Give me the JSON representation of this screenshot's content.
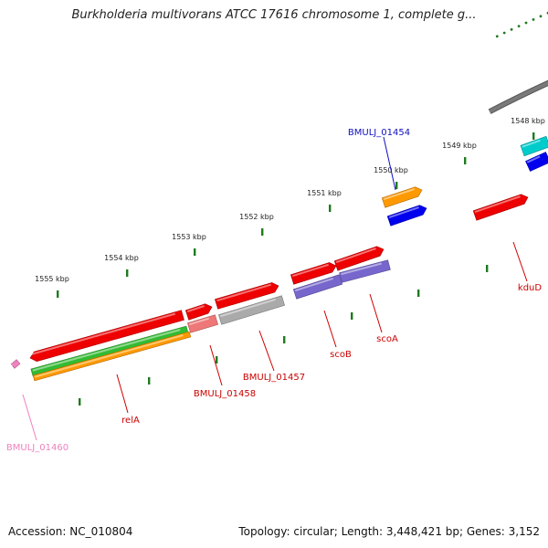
{
  "title": "Burkholderia multivorans ATCC 17616 chromosome 1, complete g...",
  "footer": {
    "accession": "Accession: NC_010804",
    "summary": "Topology: circular; Length: 3,448,421 bp; Genes: 3,152"
  },
  "ticks": [
    {
      "label": "1548 kbp"
    },
    {
      "label": "1549 kbp"
    },
    {
      "label": "1550 kbp"
    },
    {
      "label": "1551 kbp"
    },
    {
      "label": "1552 kbp"
    },
    {
      "label": "1553 kbp"
    },
    {
      "label": "1554 kbp"
    },
    {
      "label": "1555 kbp"
    }
  ],
  "gene_labels": [
    {
      "name": "BMULJ_01454",
      "color": "#1010c0"
    },
    {
      "name": "kduD",
      "color": "#cc0000"
    },
    {
      "name": "scoA",
      "color": "#cc0000"
    },
    {
      "name": "scoB",
      "color": "#cc0000"
    },
    {
      "name": "BMULJ_01457",
      "color": "#cc0000"
    },
    {
      "name": "BMULJ_01458",
      "color": "#cc0000"
    },
    {
      "name": "relA",
      "color": "#cc0000"
    },
    {
      "name": "BMULJ_01460",
      "color": "#f080c0"
    }
  ],
  "colors": {
    "backbone": "#7a7a7a",
    "tick": "#1f7a1f",
    "gene_red": "#ee0000",
    "gene_orange": "#ff9900",
    "gene_blue": "#0000ee",
    "gene_cyan": "#00cccc",
    "gene_purple": "#7766cc",
    "gene_green": "#33bb33",
    "gene_gray": "#aaaaaa",
    "gene_pink": "#ee7777"
  }
}
